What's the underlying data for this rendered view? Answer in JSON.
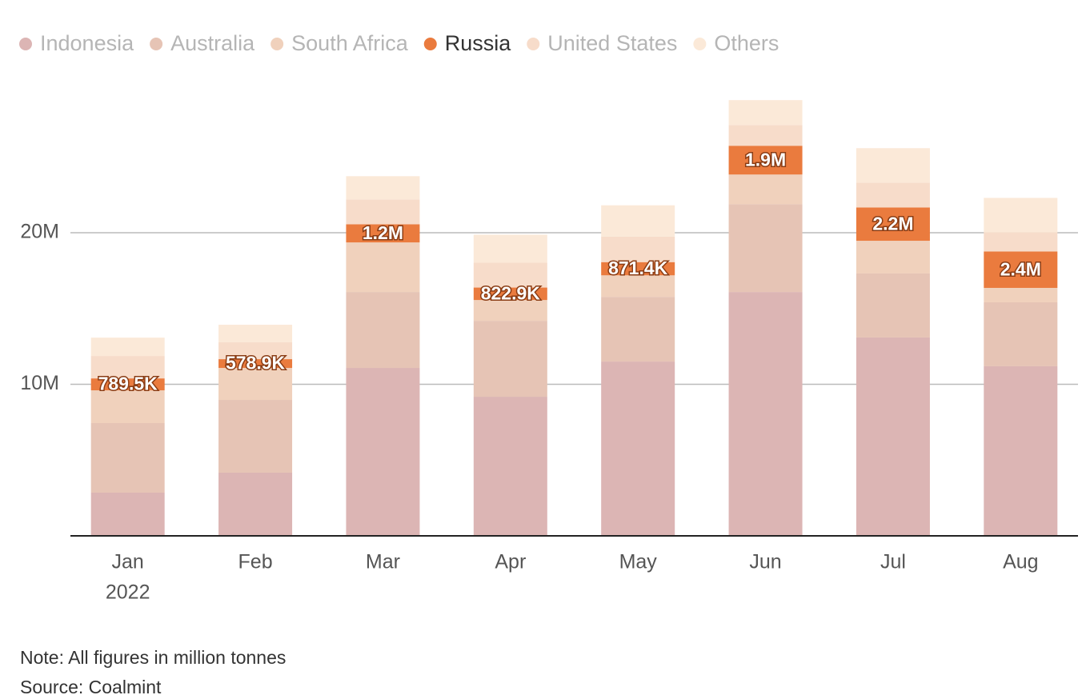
{
  "chart_data": {
    "type": "stacked_bar",
    "categories": [
      "Jan",
      "Feb",
      "Mar",
      "Apr",
      "May",
      "Jun",
      "Jul",
      "Aug"
    ],
    "year": "2022",
    "highlight": "Russia",
    "series": [
      {
        "name": "Indonesia",
        "color": "#dcb5b4",
        "values": [
          2850000,
          4170000,
          11080000,
          9180000,
          11500000,
          16090000,
          13090000,
          11190000
        ]
      },
      {
        "name": "Australia",
        "color": "#e6c4b5",
        "values": [
          4590000,
          4800000,
          5010000,
          5010000,
          4270000,
          5800000,
          4220000,
          4220000
        ]
      },
      {
        "name": "South Africa",
        "color": "#f0d1bc",
        "values": [
          2160000,
          2110000,
          3270000,
          1370000,
          1420000,
          1950000,
          2160000,
          950000
        ]
      },
      {
        "name": "Russia",
        "color": "#ea7b3e",
        "values": [
          789500,
          578900,
          1200000,
          822900,
          871400,
          1900000,
          2200000,
          2400000
        ],
        "value_labels": [
          "789.5K",
          "578.9K",
          "1.2M",
          "822.9K",
          "871.4K",
          "1.9M",
          "2.2M",
          "2.4M"
        ]
      },
      {
        "name": "United States",
        "color": "#f7dcca",
        "values": [
          1480000,
          1110000,
          1640000,
          1640000,
          1690000,
          1370000,
          1640000,
          1270000
        ]
      },
      {
        "name": "Others",
        "color": "#fbe9d8",
        "values": [
          1210000,
          1160000,
          1530000,
          1850000,
          2060000,
          1640000,
          2270000,
          2270000
        ]
      }
    ],
    "ylim": [
      0,
      30000000
    ],
    "yticks": [
      {
        "value": 10000000,
        "label": "10M"
      },
      {
        "value": 20000000,
        "label": "20M"
      }
    ],
    "grid": true,
    "note": "Note: All figures in million tonnes",
    "source": "Source: Coalmint"
  }
}
